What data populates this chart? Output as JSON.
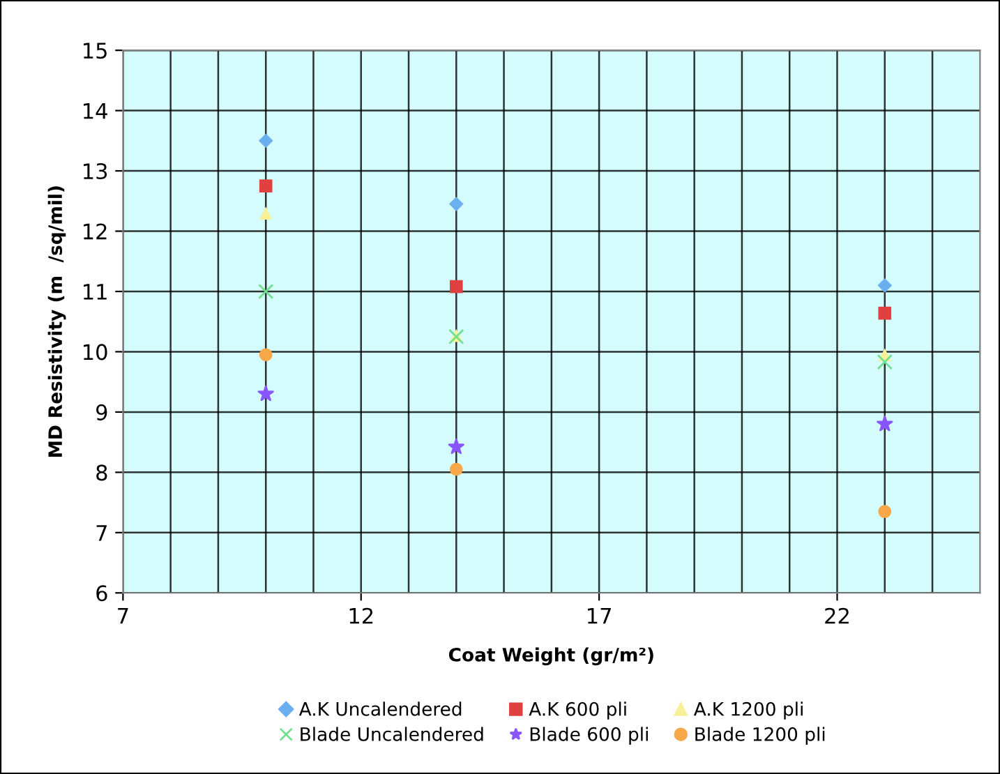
{
  "chart_data": {
    "type": "scatter",
    "xlabel": "Coat Weight (gr/m²)",
    "ylabel": "MD Resistivity (m  /sq/mil)",
    "x": [
      10,
      14,
      23
    ],
    "series": [
      {
        "name": "A.K Uncalendered",
        "color": "#6ab0f0",
        "marker": "diamond",
        "values": [
          13.5,
          12.45,
          11.1
        ]
      },
      {
        "name": "A.K 600 pli",
        "color": "#e04040",
        "marker": "square",
        "values": [
          12.75,
          11.08,
          10.64
        ]
      },
      {
        "name": "A.K 1200 pli",
        "color": "#f8f098",
        "marker": "triangle",
        "values": [
          12.3,
          10.27,
          9.95
        ]
      },
      {
        "name": "Blade Uncalendered",
        "color": "#70e090",
        "marker": "cross",
        "values": [
          11.0,
          10.25,
          9.83
        ]
      },
      {
        "name": "Blade 600 pli",
        "color": "#8855ff",
        "marker": "star",
        "values": [
          9.3,
          8.42,
          8.8
        ]
      },
      {
        "name": "Blade 1200 pli",
        "color": "#f8a848",
        "marker": "circle",
        "values": [
          9.95,
          8.05,
          7.35
        ]
      }
    ],
    "xlim": [
      7,
      25
    ],
    "xticks": [
      7,
      {
        "value": 8,
        "label": null
      },
      {
        "value": 9,
        "label": null
      },
      {
        "value": 10,
        "label": null
      },
      {
        "value": 11,
        "label": null
      },
      12,
      {
        "value": 13,
        "label": null
      },
      {
        "value": 14,
        "label": null
      },
      {
        "value": 15,
        "label": null
      },
      {
        "value": 16,
        "label": null
      },
      17,
      {
        "value": 18,
        "label": null
      },
      {
        "value": 19,
        "label": null
      },
      {
        "value": 20,
        "label": null
      },
      {
        "value": 21,
        "label": null
      },
      22,
      {
        "value": 23,
        "label": null
      },
      {
        "value": 24,
        "label": null
      }
    ],
    "ylim": [
      6,
      15
    ],
    "yticks": [
      6,
      7,
      8,
      9,
      10,
      11,
      12,
      13,
      14,
      15
    ],
    "grid": true,
    "legend": "bottom"
  }
}
